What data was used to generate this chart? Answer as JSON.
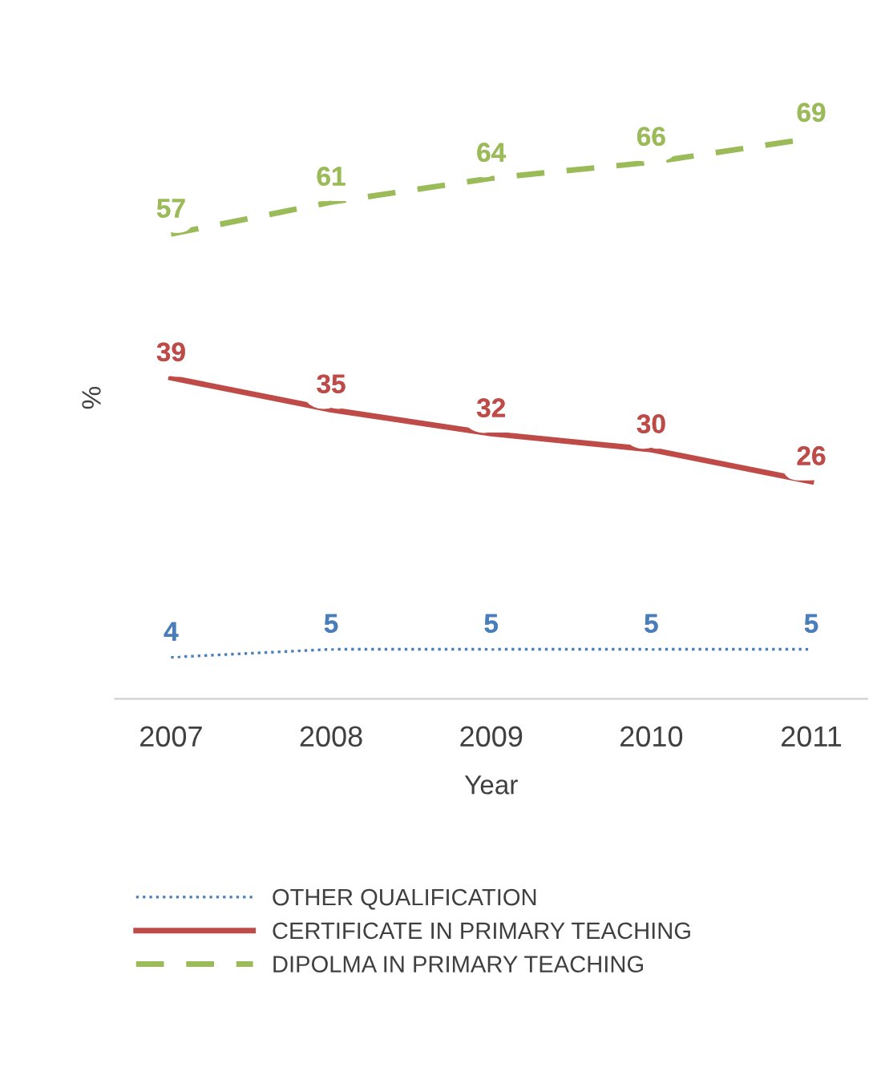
{
  "chart_data": {
    "type": "line",
    "categories": [
      "2007",
      "2008",
      "2009",
      "2010",
      "2011"
    ],
    "xlabel": "Year",
    "ylabel": "%",
    "data_labels": true,
    "grid": false,
    "legend": "bottom",
    "marker": "none",
    "series": [
      {
        "name": "OTHER QUALIFICATION",
        "color": "#4a7ebb",
        "values": [
          4,
          5,
          5,
          5,
          5
        ],
        "line_style": "dotted"
      },
      {
        "name": "CERTIFICATE IN PRIMARY TEACHING",
        "color": "#be4b48",
        "values": [
          39,
          35,
          32,
          30,
          26
        ],
        "line_style": "solid"
      },
      {
        "name": "DIPOLMA IN PRIMARY TEACHING",
        "color": "#9bbb59",
        "values": [
          57,
          61,
          64,
          66,
          69
        ],
        "line_style": "dashed"
      }
    ]
  }
}
